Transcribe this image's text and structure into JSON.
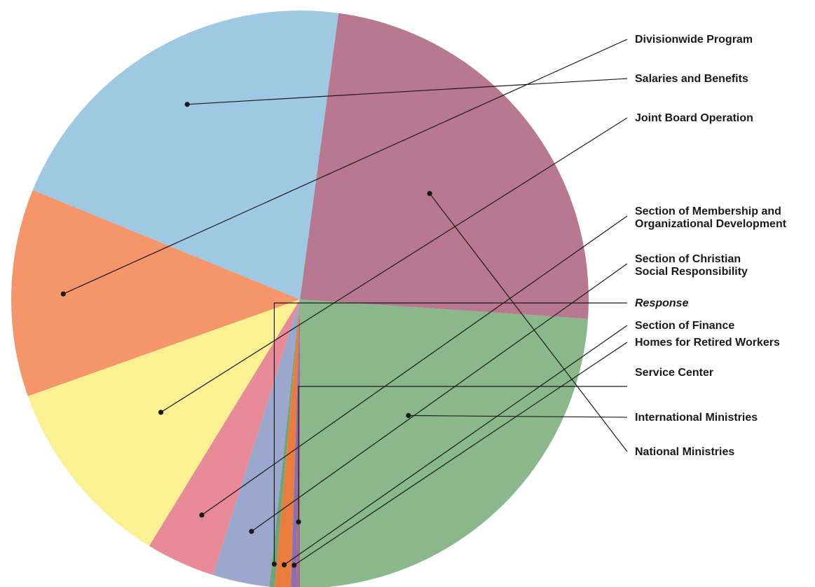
{
  "chart_data": {
    "type": "pie",
    "title": "",
    "slices": [
      {
        "label": "International Ministries",
        "value": 24.1,
        "color": "#8bb88a"
      },
      {
        "label": "National Ministries",
        "value": 24.1,
        "color": "#b8788f"
      },
      {
        "label": "Salaries and Benefits",
        "value": 21.1,
        "color": "#9fc8e3"
      },
      {
        "label": "Divisionwide Program",
        "value": 11.7,
        "color": "#f4956a"
      },
      {
        "label": "Joint Board Operation",
        "value": 10.9,
        "color": "#fbf192"
      },
      {
        "label": "Section of Membership and Organizational Development",
        "lines": [
          "Section of Membership and",
          "Organizational Development"
        ],
        "value": 3.9,
        "color": "#e88a98"
      },
      {
        "label": "Section of Christian Social Responsibility",
        "lines": [
          "Section of Christian",
          "Social Responsibility"
        ],
        "value": 3.2,
        "color": "#9ba7cc"
      },
      {
        "label": "Response",
        "value": 0.3,
        "color": "#6fa57a",
        "italic": true
      },
      {
        "label": "Section of Finance",
        "value": 0.9,
        "color": "#ea7d3d"
      },
      {
        "label": "Homes for Retired Workers",
        "value": 0.3,
        "color": "#8c6fb0"
      },
      {
        "label": "Service Center",
        "value": 0.2,
        "color": "#a36b8a"
      }
    ]
  }
}
